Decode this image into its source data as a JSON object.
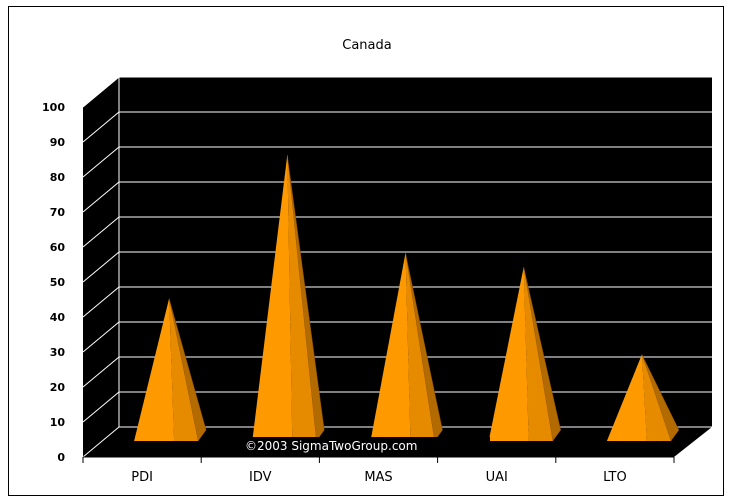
{
  "chart_data": {
    "type": "bar",
    "subtype": "3d-pyramid",
    "title": "Canada",
    "categories": [
      "PDI",
      "IDV",
      "MAS",
      "UAI",
      "LTO"
    ],
    "values": [
      39,
      80,
      52,
      48,
      23
    ],
    "ylim": [
      0,
      100
    ],
    "yticks": [
      0,
      10,
      20,
      30,
      40,
      50,
      60,
      70,
      80,
      90,
      100
    ],
    "grid": true,
    "legend": "none",
    "bar_color": "#ff9900",
    "plot_background": "#000000",
    "grid_color": "#ffffff"
  },
  "watermark": "©2003 SigmaTwoGroup.com"
}
